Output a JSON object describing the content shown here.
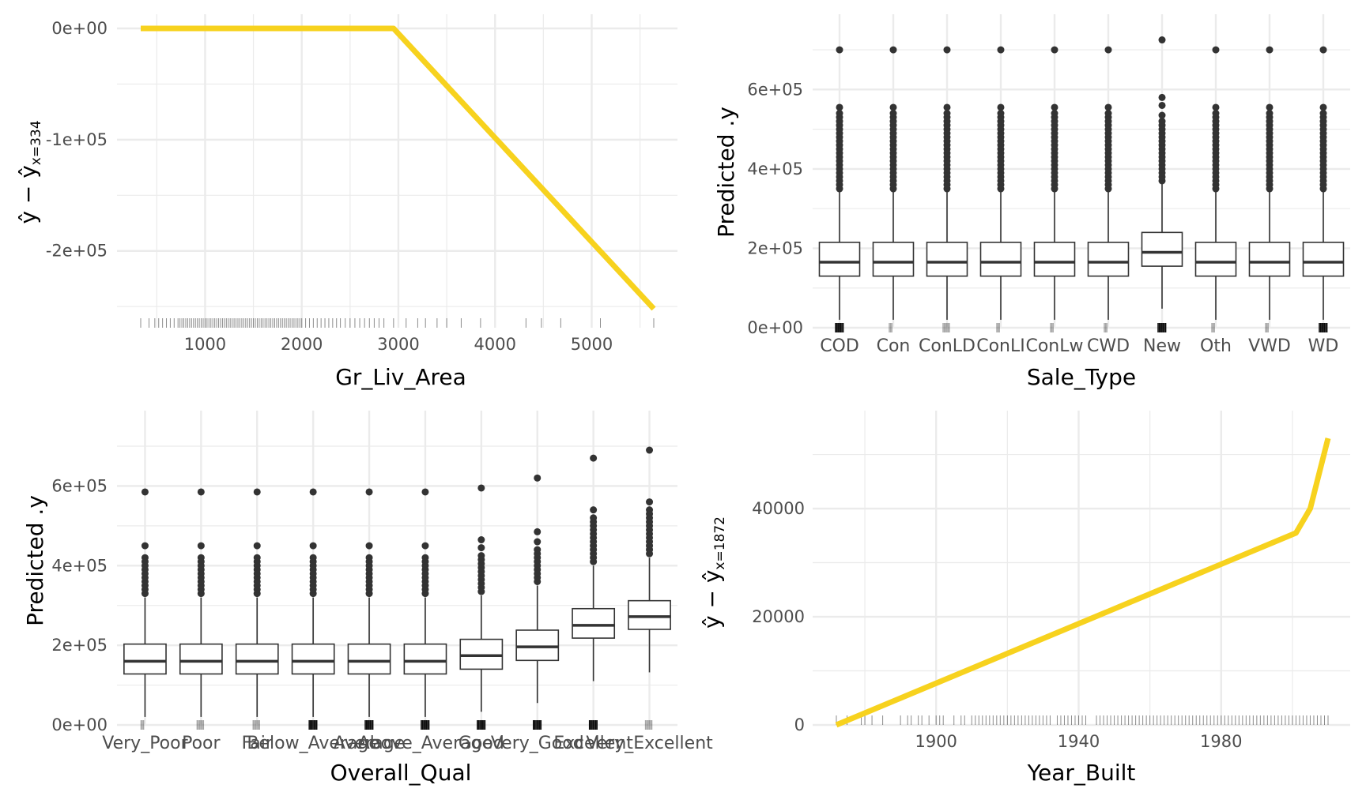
{
  "chart_data": [
    {
      "type": "line",
      "panel": "top-left",
      "xlabel": "Gr_Liv_Area",
      "ylabel_parts": [
        "ŷ − ŷ",
        "x=334"
      ],
      "colors": {
        "line": "#F7D21E",
        "grid": "#EBEBEB",
        "rug": "#000000"
      },
      "xlim": [
        334,
        5642
      ],
      "ylim": [
        -252000,
        0
      ],
      "x_ticks": [
        1000,
        2000,
        3000,
        4000,
        5000
      ],
      "x_tick_labels": [
        "1000",
        "2000",
        "3000",
        "4000",
        "5000"
      ],
      "y_ticks": [
        0,
        -100000,
        -200000
      ],
      "y_tick_labels": [
        "0e+00",
        "-1e+05",
        "-2e+05"
      ],
      "x": [
        334,
        2950,
        5642
      ],
      "y": [
        0,
        0,
        -252000
      ],
      "rug": [
        334,
        420,
        480,
        520,
        560,
        600,
        640,
        680,
        720,
        740,
        760,
        780,
        800,
        820,
        840,
        860,
        880,
        900,
        920,
        940,
        960,
        980,
        1000,
        1020,
        1040,
        1060,
        1080,
        1100,
        1120,
        1140,
        1160,
        1180,
        1200,
        1220,
        1240,
        1260,
        1280,
        1300,
        1320,
        1340,
        1360,
        1380,
        1400,
        1420,
        1440,
        1460,
        1480,
        1500,
        1520,
        1540,
        1560,
        1580,
        1600,
        1620,
        1640,
        1660,
        1680,
        1700,
        1720,
        1740,
        1760,
        1780,
        1800,
        1820,
        1840,
        1860,
        1880,
        1900,
        1920,
        1940,
        1960,
        1980,
        2000,
        2040,
        2080,
        2120,
        2160,
        2200,
        2240,
        2280,
        2320,
        2360,
        2400,
        2450,
        2500,
        2550,
        2600,
        2650,
        2700,
        2750,
        2800,
        2850,
        2950,
        3080,
        3200,
        3280,
        3400,
        3500,
        3650,
        3850,
        4320,
        4480,
        4680,
        5090,
        5642
      ]
    },
    {
      "type": "boxplot",
      "panel": "top-right",
      "xlabel": "Sale_Type",
      "ylabel": "Predicted .y",
      "colors": {
        "box_fill": "#FFFFFF",
        "box_line": "#333333",
        "point": "#333333",
        "grid": "#EBEBEB"
      },
      "ylim": [
        0,
        730000
      ],
      "y_ticks": [
        0,
        200000,
        400000,
        600000
      ],
      "y_tick_labels": [
        "0e+00",
        "2e+05",
        "4e+05",
        "6e+05"
      ],
      "categories": [
        "COD",
        "Con",
        "ConLD",
        "ConLI",
        "ConLw",
        "CWD",
        "New",
        "Oth",
        "VWD",
        "WD"
      ],
      "boxes": [
        {
          "q1": 130000,
          "median": 165000,
          "q3": 215000,
          "whisker_low": 20000,
          "whisker_high": 345000,
          "outliers": [
            350000,
            360000,
            370000,
            380000,
            390000,
            400000,
            410000,
            420000,
            430000,
            440000,
            450000,
            460000,
            470000,
            480000,
            490000,
            500000,
            510000,
            520000,
            530000,
            540000,
            555000,
            700000
          ],
          "rug": "dense"
        },
        {
          "q1": 130000,
          "median": 165000,
          "q3": 215000,
          "whisker_low": 20000,
          "whisker_high": 345000,
          "outliers": [
            350000,
            360000,
            370000,
            380000,
            390000,
            400000,
            410000,
            420000,
            430000,
            440000,
            450000,
            460000,
            470000,
            480000,
            490000,
            500000,
            510000,
            520000,
            530000,
            540000,
            555000,
            700000
          ],
          "rug": "sparse"
        },
        {
          "q1": 130000,
          "median": 165000,
          "q3": 215000,
          "whisker_low": 20000,
          "whisker_high": 345000,
          "outliers": [
            350000,
            360000,
            370000,
            380000,
            390000,
            400000,
            410000,
            420000,
            430000,
            440000,
            450000,
            460000,
            470000,
            480000,
            490000,
            500000,
            510000,
            520000,
            530000,
            540000,
            555000,
            700000
          ],
          "rug": "medium"
        },
        {
          "q1": 130000,
          "median": 165000,
          "q3": 215000,
          "whisker_low": 20000,
          "whisker_high": 345000,
          "outliers": [
            350000,
            360000,
            370000,
            380000,
            390000,
            400000,
            410000,
            420000,
            430000,
            440000,
            450000,
            460000,
            470000,
            480000,
            490000,
            500000,
            510000,
            520000,
            530000,
            540000,
            555000,
            700000
          ],
          "rug": "sparse"
        },
        {
          "q1": 130000,
          "median": 165000,
          "q3": 215000,
          "whisker_low": 20000,
          "whisker_high": 345000,
          "outliers": [
            350000,
            360000,
            370000,
            380000,
            390000,
            400000,
            410000,
            420000,
            430000,
            440000,
            450000,
            460000,
            470000,
            480000,
            490000,
            500000,
            510000,
            520000,
            530000,
            540000,
            555000,
            700000
          ],
          "rug": "sparse"
        },
        {
          "q1": 130000,
          "median": 165000,
          "q3": 215000,
          "whisker_low": 20000,
          "whisker_high": 345000,
          "outliers": [
            350000,
            360000,
            370000,
            380000,
            390000,
            400000,
            410000,
            420000,
            430000,
            440000,
            450000,
            460000,
            470000,
            480000,
            490000,
            500000,
            510000,
            520000,
            530000,
            540000,
            555000,
            700000
          ],
          "rug": "sparse"
        },
        {
          "q1": 155000,
          "median": 190000,
          "q3": 240000,
          "whisker_low": 48000,
          "whisker_high": 365000,
          "outliers": [
            370000,
            380000,
            390000,
            400000,
            410000,
            420000,
            430000,
            440000,
            450000,
            460000,
            470000,
            480000,
            490000,
            500000,
            510000,
            520000,
            535000,
            560000,
            580000,
            725000
          ],
          "rug": "dense"
        },
        {
          "q1": 130000,
          "median": 165000,
          "q3": 215000,
          "whisker_low": 20000,
          "whisker_high": 345000,
          "outliers": [
            350000,
            360000,
            370000,
            380000,
            390000,
            400000,
            410000,
            420000,
            430000,
            440000,
            450000,
            460000,
            470000,
            480000,
            490000,
            500000,
            510000,
            520000,
            530000,
            540000,
            555000,
            700000
          ],
          "rug": "sparse"
        },
        {
          "q1": 130000,
          "median": 165000,
          "q3": 215000,
          "whisker_low": 20000,
          "whisker_high": 345000,
          "outliers": [
            350000,
            360000,
            370000,
            380000,
            390000,
            400000,
            410000,
            420000,
            430000,
            440000,
            450000,
            460000,
            470000,
            480000,
            490000,
            500000,
            510000,
            520000,
            530000,
            540000,
            555000,
            700000
          ],
          "rug": "sparse"
        },
        {
          "q1": 130000,
          "median": 165000,
          "q3": 215000,
          "whisker_low": 20000,
          "whisker_high": 345000,
          "outliers": [
            350000,
            360000,
            370000,
            380000,
            390000,
            400000,
            410000,
            420000,
            430000,
            440000,
            450000,
            460000,
            470000,
            480000,
            490000,
            500000,
            510000,
            520000,
            530000,
            540000,
            555000,
            700000
          ],
          "rug": "dense"
        }
      ]
    },
    {
      "type": "boxplot",
      "panel": "bottom-left",
      "xlabel": "Overall_Qual",
      "ylabel": "Predicted .y",
      "colors": {
        "box_fill": "#FFFFFF",
        "box_line": "#333333",
        "point": "#333333",
        "grid": "#EBEBEB"
      },
      "ylim": [
        0,
        700000
      ],
      "y_ticks": [
        0,
        200000,
        400000,
        600000
      ],
      "y_tick_labels": [
        "0e+00",
        "2e+05",
        "4e+05",
        "6e+05"
      ],
      "categories": [
        "Very_Poor",
        "Poor",
        "Fair",
        "Below_Average",
        "Average",
        "Above_Average",
        "Good",
        "Very_Good",
        "Excellent",
        "Very_Excellent"
      ],
      "boxes": [
        {
          "q1": 128000,
          "median": 160000,
          "q3": 203000,
          "whisker_low": 20000,
          "whisker_high": 320000,
          "outliers": [
            330000,
            340000,
            350000,
            360000,
            370000,
            380000,
            390000,
            400000,
            410000,
            420000,
            450000,
            585000
          ],
          "rug": "sparse"
        },
        {
          "q1": 128000,
          "median": 160000,
          "q3": 203000,
          "whisker_low": 20000,
          "whisker_high": 320000,
          "outliers": [
            330000,
            340000,
            350000,
            360000,
            370000,
            380000,
            390000,
            400000,
            410000,
            420000,
            450000,
            585000
          ],
          "rug": "medium"
        },
        {
          "q1": 128000,
          "median": 160000,
          "q3": 203000,
          "whisker_low": 20000,
          "whisker_high": 320000,
          "outliers": [
            330000,
            340000,
            350000,
            360000,
            370000,
            380000,
            390000,
            400000,
            410000,
            420000,
            450000,
            585000
          ],
          "rug": "medium"
        },
        {
          "q1": 128000,
          "median": 160000,
          "q3": 203000,
          "whisker_low": 20000,
          "whisker_high": 320000,
          "outliers": [
            330000,
            340000,
            350000,
            360000,
            370000,
            380000,
            390000,
            400000,
            410000,
            420000,
            450000,
            585000
          ],
          "rug": "dense"
        },
        {
          "q1": 128000,
          "median": 160000,
          "q3": 203000,
          "whisker_low": 20000,
          "whisker_high": 320000,
          "outliers": [
            330000,
            340000,
            350000,
            360000,
            370000,
            380000,
            390000,
            400000,
            410000,
            420000,
            450000,
            585000
          ],
          "rug": "dense"
        },
        {
          "q1": 128000,
          "median": 160000,
          "q3": 203000,
          "whisker_low": 20000,
          "whisker_high": 320000,
          "outliers": [
            330000,
            340000,
            350000,
            360000,
            370000,
            380000,
            390000,
            400000,
            410000,
            420000,
            450000,
            585000
          ],
          "rug": "dense"
        },
        {
          "q1": 140000,
          "median": 174000,
          "q3": 215000,
          "whisker_low": 33000,
          "whisker_high": 325000,
          "outliers": [
            335000,
            345000,
            355000,
            365000,
            375000,
            385000,
            395000,
            405000,
            415000,
            425000,
            445000,
            465000,
            595000
          ],
          "rug": "dense"
        },
        {
          "q1": 162000,
          "median": 196000,
          "q3": 238000,
          "whisker_low": 55000,
          "whisker_high": 350000,
          "outliers": [
            360000,
            370000,
            380000,
            390000,
            400000,
            410000,
            420000,
            430000,
            440000,
            460000,
            485000,
            620000
          ],
          "rug": "dense"
        },
        {
          "q1": 218000,
          "median": 250000,
          "q3": 292000,
          "whisker_low": 110000,
          "whisker_high": 400000,
          "outliers": [
            410000,
            420000,
            430000,
            440000,
            450000,
            460000,
            470000,
            480000,
            490000,
            500000,
            510000,
            520000,
            540000,
            670000
          ],
          "rug": "dense"
        },
        {
          "q1": 240000,
          "median": 272000,
          "q3": 312000,
          "whisker_low": 132000,
          "whisker_high": 420000,
          "outliers": [
            430000,
            440000,
            450000,
            460000,
            470000,
            480000,
            490000,
            500000,
            510000,
            520000,
            530000,
            540000,
            560000,
            690000
          ],
          "rug": "medium"
        }
      ]
    },
    {
      "type": "line",
      "panel": "bottom-right",
      "xlabel": "Year_Built",
      "ylabel_parts": [
        "ŷ − ŷ",
        "x=1872"
      ],
      "colors": {
        "line": "#F7D21E",
        "grid": "#EBEBEB",
        "rug": "#000000"
      },
      "xlim": [
        1872,
        2010
      ],
      "ylim": [
        0,
        53000
      ],
      "x_ticks": [
        1900,
        1940,
        1980
      ],
      "x_tick_labels": [
        "1900",
        "1940",
        "1980"
      ],
      "y_ticks": [
        0,
        20000,
        40000
      ],
      "y_tick_labels": [
        "0",
        "20000",
        "40000"
      ],
      "x": [
        1872,
        2001,
        2005,
        2010
      ],
      "y": [
        0,
        35500,
        40000,
        53000
      ],
      "rug": [
        1872,
        1875,
        1879,
        1880,
        1882,
        1885,
        1890,
        1892,
        1893,
        1895,
        1896,
        1898,
        1900,
        1901,
        1902,
        1905,
        1907,
        1908,
        1910,
        1911,
        1912,
        1913,
        1914,
        1915,
        1916,
        1917,
        1918,
        1919,
        1920,
        1921,
        1922,
        1923,
        1924,
        1925,
        1926,
        1927,
        1928,
        1929,
        1930,
        1931,
        1932,
        1934,
        1935,
        1936,
        1937,
        1938,
        1939,
        1940,
        1941,
        1942,
        1945,
        1946,
        1947,
        1948,
        1949,
        1950,
        1951,
        1952,
        1953,
        1954,
        1955,
        1956,
        1957,
        1958,
        1959,
        1960,
        1961,
        1962,
        1963,
        1964,
        1965,
        1966,
        1967,
        1968,
        1969,
        1970,
        1971,
        1972,
        1973,
        1974,
        1975,
        1976,
        1977,
        1978,
        1979,
        1980,
        1981,
        1982,
        1983,
        1984,
        1985,
        1986,
        1987,
        1988,
        1989,
        1990,
        1991,
        1992,
        1993,
        1994,
        1995,
        1996,
        1997,
        1998,
        1999,
        2000,
        2001,
        2002,
        2003,
        2004,
        2005,
        2006,
        2007,
        2008,
        2009,
        2010
      ]
    }
  ]
}
